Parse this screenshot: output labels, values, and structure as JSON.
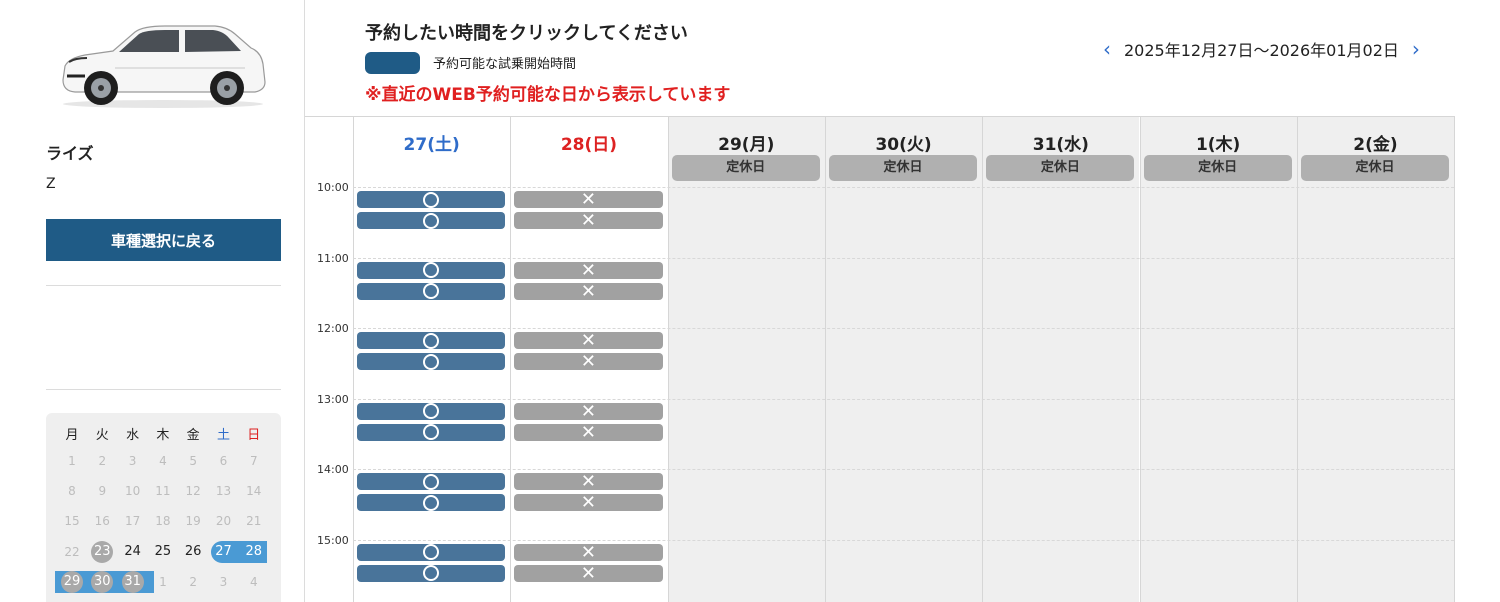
{
  "car": {
    "name": "ライズ",
    "grade": "Z",
    "back_button": "車種選択に戻る"
  },
  "header": {
    "title": "予約したい時間をクリックしてください",
    "legend_text": "予約可能な試乗開始時間",
    "notice": "※直近のWEB予約可能な日から表示しています",
    "date_range": "2025年12月27日〜2026年01月02日",
    "prev_icon": "chevron-left-icon",
    "next_icon": "chevron-right-icon"
  },
  "mini_calendar": {
    "weekdays": [
      "月",
      "火",
      "水",
      "木",
      "金",
      "土",
      "日"
    ],
    "weeks": [
      [
        "1",
        "2",
        "3",
        "4",
        "5",
        "6",
        "7"
      ],
      [
        "8",
        "9",
        "10",
        "11",
        "12",
        "13",
        "14"
      ],
      [
        "15",
        "16",
        "17",
        "18",
        "19",
        "20",
        "21"
      ],
      [
        "22",
        "23",
        "24",
        "25",
        "26",
        "27",
        "28"
      ],
      [
        "29",
        "30",
        "31",
        "1",
        "2",
        "3",
        "4"
      ]
    ],
    "today_marked": [
      "23"
    ],
    "bookable": [
      "24",
      "25",
      "26"
    ],
    "selected_range": [
      "27",
      "28",
      "29",
      "30",
      "31"
    ]
  },
  "schedule": {
    "times": [
      "10:00",
      "11:00",
      "12:00",
      "13:00",
      "14:00",
      "15:00"
    ],
    "closed_label": "定休日",
    "available_symbol": "○",
    "full_symbol": "✕",
    "days": [
      {
        "label": "27(土)",
        "kind": "sat",
        "closed": false,
        "slots": [
          "available",
          "available",
          "available",
          "available",
          "available",
          "available",
          "available",
          "available",
          "available",
          "available",
          "available",
          "available"
        ]
      },
      {
        "label": "28(日)",
        "kind": "sun",
        "closed": false,
        "slots": [
          "full",
          "full",
          "full",
          "full",
          "full",
          "full",
          "full",
          "full",
          "full",
          "full",
          "full",
          "full"
        ]
      },
      {
        "label": "29(月)",
        "kind": "weekday",
        "closed": true,
        "slots": []
      },
      {
        "label": "30(火)",
        "kind": "weekday",
        "closed": true,
        "slots": []
      },
      {
        "label": "31(水)",
        "kind": "weekday",
        "closed": true,
        "slots": []
      },
      {
        "label": "1(木)",
        "kind": "weekday",
        "closed": true,
        "slots": []
      },
      {
        "label": "2(金)",
        "kind": "weekday",
        "closed": true,
        "slots": []
      }
    ]
  },
  "colors": {
    "accent": "#1f5b86",
    "slot_available": "#49749a",
    "slot_full": "#a1a1a1",
    "saturday": "#2f6cc9",
    "sunday": "#dd2222",
    "notice": "#e02020"
  }
}
